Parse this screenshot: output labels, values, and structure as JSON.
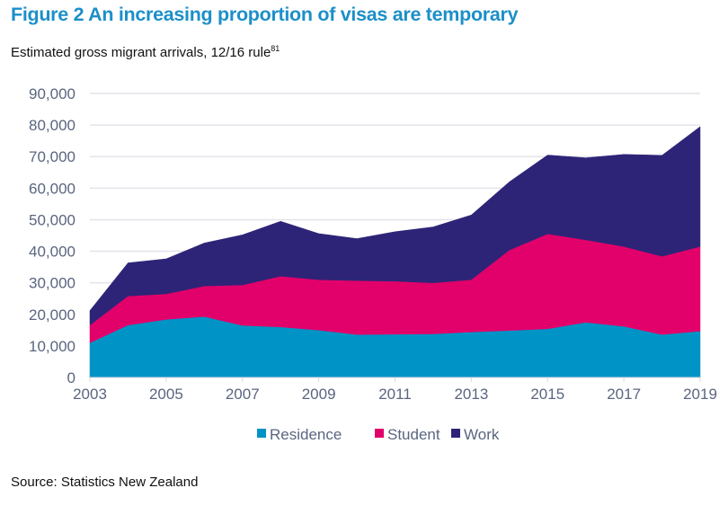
{
  "figure": {
    "title": "Figure 2 An increasing proportion of visas are temporary",
    "subtitle": "Estimated gross migrant arrivals, 12/16 rule",
    "subtitle_footnote": "81",
    "source": "Source: Statistics New Zealand"
  },
  "chart_data": {
    "type": "area",
    "stacked": true,
    "title": "Figure 2 An increasing proportion of visas are temporary",
    "subtitle": "Estimated gross migrant arrivals, 12/16 rule",
    "xlabel": "",
    "ylabel": "",
    "x": [
      2003,
      2004,
      2005,
      2006,
      2007,
      2008,
      2009,
      2010,
      2011,
      2012,
      2013,
      2014,
      2015,
      2016,
      2017,
      2018,
      2019
    ],
    "x_tick_labels": [
      "2003",
      "2005",
      "2007",
      "2009",
      "2011",
      "2013",
      "2015",
      "2017",
      "2019"
    ],
    "y_tick_labels": [
      "0",
      "10,000",
      "20,000",
      "30,000",
      "40,000",
      "50,000",
      "60,000",
      "70,000",
      "80,000",
      "90,000"
    ],
    "ylim": [
      0,
      90000
    ],
    "xlim": [
      2003,
      2019
    ],
    "grid": "horizontal",
    "legend_position": "bottom-center",
    "series": [
      {
        "name": "Residence",
        "color": "#0093C6",
        "values": [
          11000,
          16600,
          18400,
          19300,
          16500,
          16000,
          15000,
          13600,
          13700,
          13800,
          14400,
          14900,
          15400,
          17500,
          16200,
          13600,
          14700
        ]
      },
      {
        "name": "Student",
        "color": "#E2006A",
        "values": [
          5600,
          9200,
          8100,
          9700,
          12800,
          16100,
          16000,
          17100,
          16800,
          16200,
          16600,
          25500,
          30100,
          26100,
          25300,
          24800,
          26800
        ]
      },
      {
        "name": "Work",
        "color": "#2E2477",
        "values": [
          4600,
          10500,
          11100,
          13600,
          15900,
          17400,
          14600,
          13300,
          15700,
          17700,
          20500,
          21600,
          25000,
          26000,
          29200,
          32000,
          38000
        ]
      }
    ]
  }
}
